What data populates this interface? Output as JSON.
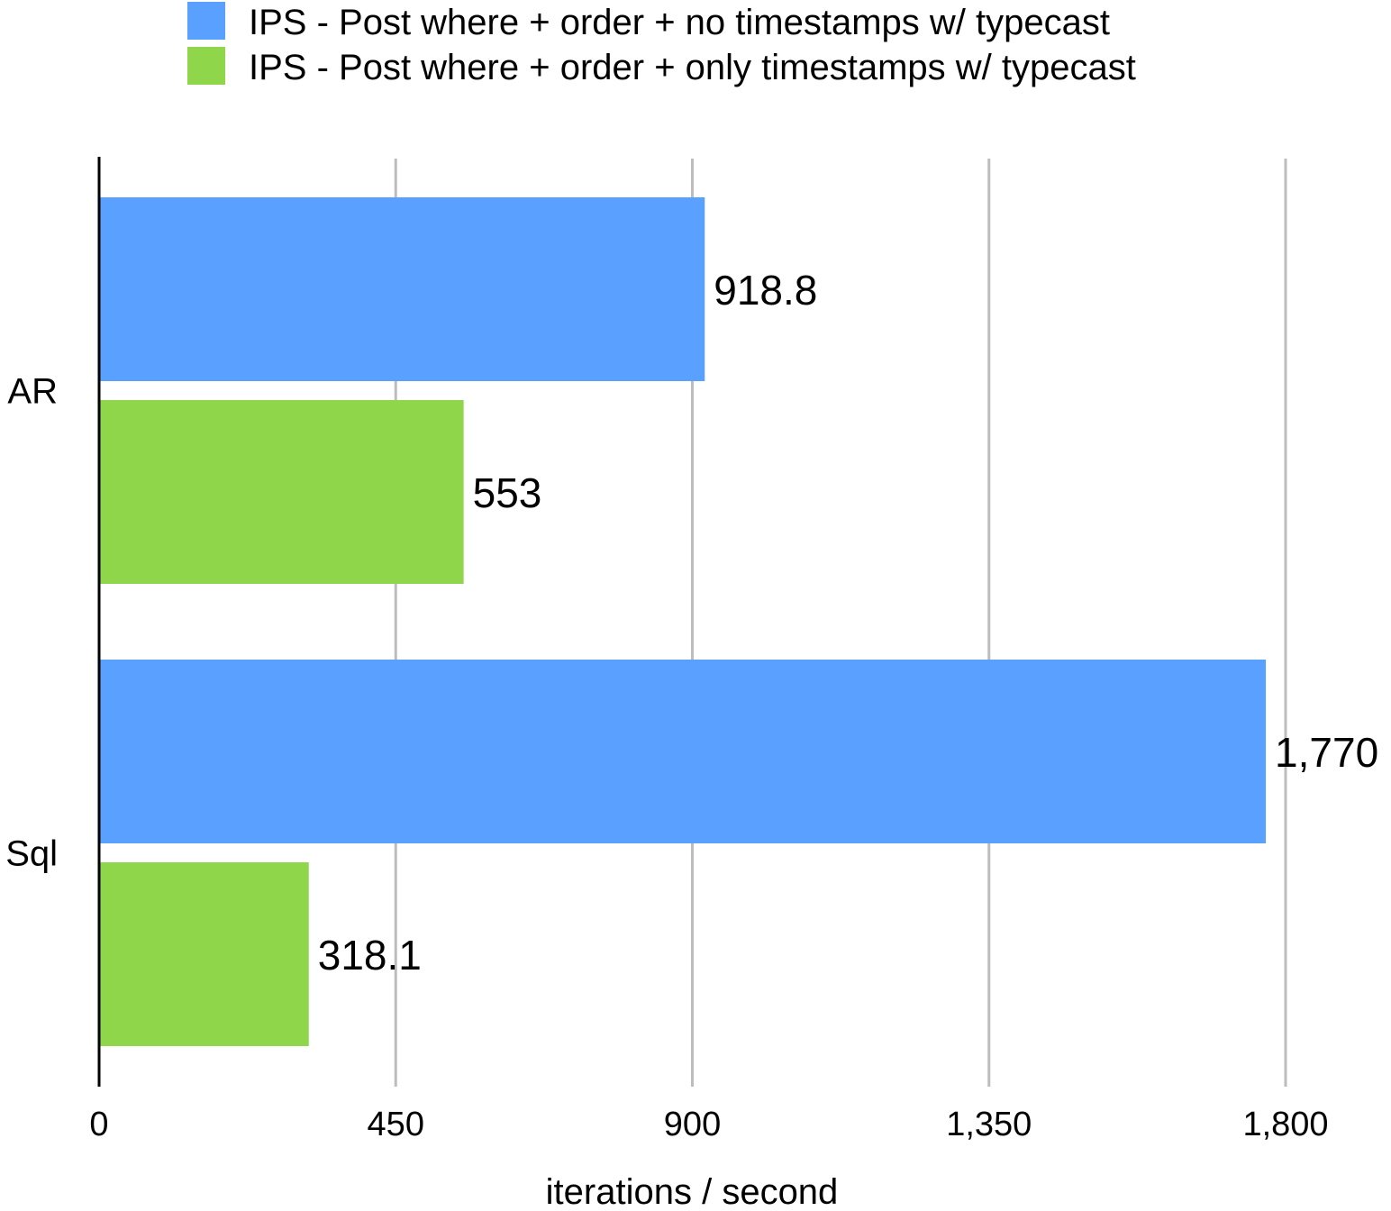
{
  "chart_data": {
    "type": "bar",
    "orientation": "horizontal",
    "categories": [
      "AR",
      "Sql"
    ],
    "series": [
      {
        "name": "IPS - Post where + order + no timestamps w/ typecast",
        "color": "#5aa0ff",
        "values": [
          918.8,
          1770
        ],
        "labels": [
          "918.8",
          "1,770"
        ]
      },
      {
        "name": "IPS - Post where + order + only timestamps w/ typecast",
        "color": "#8fd64b",
        "values": [
          553,
          318.1
        ],
        "labels": [
          "553",
          "318.1"
        ]
      }
    ],
    "xlabel": "iterations / second",
    "ylabel": "",
    "xlim": [
      0,
      1800
    ],
    "xticks": [
      0,
      450,
      900,
      1350,
      1800
    ],
    "xtick_labels": [
      "0",
      "450",
      "900",
      "1,350",
      "1,800"
    ],
    "grid": "vertical",
    "legend": "top"
  }
}
